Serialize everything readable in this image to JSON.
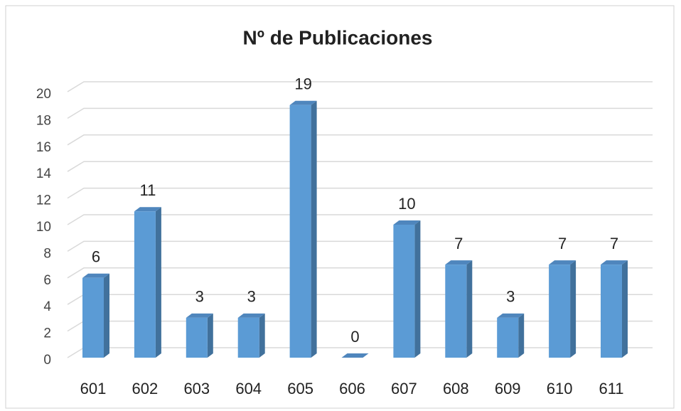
{
  "chart_data": {
    "type": "bar3d",
    "title": "Nº  de Publicaciones",
    "categories": [
      "601",
      "602",
      "603",
      "604",
      "605",
      "606",
      "607",
      "608",
      "609",
      "610",
      "611"
    ],
    "values": [
      6,
      11,
      3,
      3,
      19,
      0,
      10,
      7,
      3,
      7,
      7
    ],
    "color": "#5b9bd5",
    "ylim": [
      0,
      20
    ],
    "yticks": [
      0,
      2,
      4,
      6,
      8,
      10,
      12,
      14,
      16,
      18,
      20
    ],
    "grid": true
  }
}
